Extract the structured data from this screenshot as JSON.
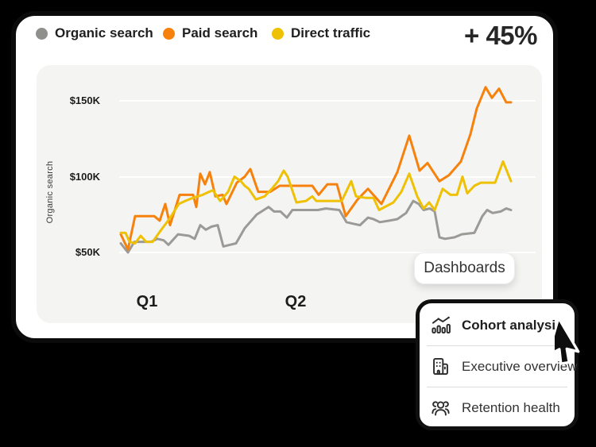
{
  "kpi": {
    "value": "+ 45%"
  },
  "legend": [
    {
      "label": "Organic search",
      "color": "#8F8F8C"
    },
    {
      "label": "Paid search",
      "color": "#F6820D"
    },
    {
      "label": "Direct traffic",
      "color": "#EFC104"
    }
  ],
  "chart_data": {
    "type": "line",
    "title": "",
    "xlabel": "",
    "ylabel": "Organic search",
    "unit": "USD thousands",
    "y_ticks": [
      "$150K",
      "$100K",
      "$50K"
    ],
    "y_tick_values": [
      150,
      100,
      50
    ],
    "ylim": [
      45,
      165
    ],
    "x_labels": [
      "Q1",
      "Q2"
    ],
    "grid": true,
    "legend_position": "top",
    "series": [
      {
        "name": "Organic search",
        "color": "#9B9A96",
        "points": [
          [
            152,
            56
          ],
          [
            161,
            50
          ],
          [
            169,
            57
          ],
          [
            190,
            57
          ],
          [
            198,
            59
          ],
          [
            206,
            58
          ],
          [
            212,
            55
          ],
          [
            224,
            62
          ],
          [
            238,
            61
          ],
          [
            245,
            59
          ],
          [
            252,
            68
          ],
          [
            259,
            65
          ],
          [
            266,
            67
          ],
          [
            274,
            68
          ],
          [
            281,
            54
          ],
          [
            289,
            55
          ],
          [
            297,
            56
          ],
          [
            308,
            66
          ],
          [
            323,
            75
          ],
          [
            332,
            78
          ],
          [
            338,
            80
          ],
          [
            345,
            77
          ],
          [
            353,
            77
          ],
          [
            361,
            73
          ],
          [
            368,
            78
          ],
          [
            385,
            78
          ],
          [
            400,
            78
          ],
          [
            410,
            79
          ],
          [
            427,
            78
          ],
          [
            436,
            70
          ],
          [
            444,
            69
          ],
          [
            453,
            68
          ],
          [
            463,
            73
          ],
          [
            470,
            72
          ],
          [
            478,
            70
          ],
          [
            490,
            71
          ],
          [
            500,
            72
          ],
          [
            511,
            76
          ],
          [
            520,
            84
          ],
          [
            527,
            82
          ],
          [
            533,
            78
          ],
          [
            541,
            79
          ],
          [
            547,
            77
          ],
          [
            553,
            60
          ],
          [
            560,
            59
          ],
          [
            572,
            60
          ],
          [
            581,
            62
          ],
          [
            597,
            63
          ],
          [
            607,
            74
          ],
          [
            613,
            78
          ],
          [
            620,
            76
          ],
          [
            630,
            77
          ],
          [
            637,
            79
          ],
          [
            643,
            78
          ]
        ]
      },
      {
        "name": "Paid search",
        "color": "#F6820D",
        "points": [
          [
            152,
            62
          ],
          [
            161,
            52
          ],
          [
            170,
            74
          ],
          [
            194,
            74
          ],
          [
            201,
            71
          ],
          [
            208,
            82
          ],
          [
            214,
            68
          ],
          [
            226,
            88
          ],
          [
            243,
            88
          ],
          [
            247,
            80
          ],
          [
            252,
            102
          ],
          [
            258,
            95
          ],
          [
            264,
            103
          ],
          [
            271,
            87
          ],
          [
            280,
            88
          ],
          [
            285,
            82
          ],
          [
            298,
            96
          ],
          [
            308,
            100
          ],
          [
            315,
            105
          ],
          [
            325,
            90
          ],
          [
            340,
            90
          ],
          [
            352,
            94
          ],
          [
            375,
            94
          ],
          [
            393,
            94
          ],
          [
            401,
            88
          ],
          [
            412,
            95
          ],
          [
            424,
            95
          ],
          [
            435,
            74
          ],
          [
            450,
            85
          ],
          [
            463,
            92
          ],
          [
            480,
            82
          ],
          [
            500,
            103
          ],
          [
            515,
            127
          ],
          [
            528,
            104
          ],
          [
            538,
            109
          ],
          [
            553,
            97
          ],
          [
            565,
            101
          ],
          [
            580,
            110
          ],
          [
            592,
            128
          ],
          [
            600,
            145
          ],
          [
            611,
            159
          ],
          [
            619,
            152
          ],
          [
            628,
            158
          ],
          [
            637,
            149
          ],
          [
            643,
            149
          ]
        ]
      },
      {
        "name": "Direct traffic",
        "color": "#EFC104",
        "points": [
          [
            152,
            63
          ],
          [
            158,
            63
          ],
          [
            163,
            57
          ],
          [
            170,
            56
          ],
          [
            177,
            61
          ],
          [
            184,
            57
          ],
          [
            192,
            57
          ],
          [
            203,
            65
          ],
          [
            213,
            72
          ],
          [
            225,
            82
          ],
          [
            233,
            84
          ],
          [
            243,
            86
          ],
          [
            255,
            88
          ],
          [
            263,
            90
          ],
          [
            268,
            91
          ],
          [
            277,
            84
          ],
          [
            287,
            90
          ],
          [
            295,
            100
          ],
          [
            303,
            97
          ],
          [
            308,
            94
          ],
          [
            313,
            92
          ],
          [
            322,
            85
          ],
          [
            333,
            87
          ],
          [
            342,
            92
          ],
          [
            350,
            97
          ],
          [
            357,
            104
          ],
          [
            362,
            100
          ],
          [
            373,
            83
          ],
          [
            385,
            84
          ],
          [
            393,
            87
          ],
          [
            398,
            84
          ],
          [
            415,
            84
          ],
          [
            430,
            84
          ],
          [
            442,
            97
          ],
          [
            448,
            87
          ],
          [
            460,
            86
          ],
          [
            470,
            86
          ],
          [
            477,
            78
          ],
          [
            495,
            83
          ],
          [
            505,
            90
          ],
          [
            515,
            102
          ],
          [
            525,
            87
          ],
          [
            533,
            79
          ],
          [
            540,
            83
          ],
          [
            547,
            78
          ],
          [
            557,
            92
          ],
          [
            567,
            88
          ],
          [
            575,
            88
          ],
          [
            582,
            100
          ],
          [
            588,
            89
          ],
          [
            597,
            94
          ],
          [
            605,
            96
          ],
          [
            615,
            96
          ],
          [
            623,
            96
          ],
          [
            633,
            110
          ],
          [
            643,
            97
          ]
        ]
      }
    ]
  },
  "dashboards_button": {
    "label": "Dashboards"
  },
  "menu": {
    "items": [
      {
        "label": "Cohort analysis",
        "icon": "cohort-chart-icon"
      },
      {
        "label": "Executive overview",
        "icon": "building-icon"
      },
      {
        "label": "Retention health",
        "icon": "people-icon"
      }
    ]
  }
}
